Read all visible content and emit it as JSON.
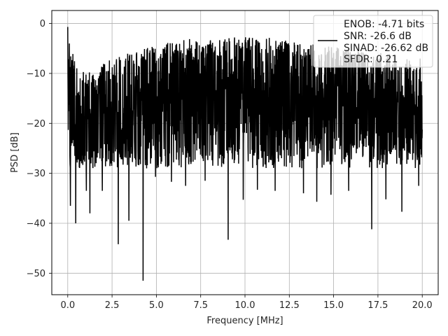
{
  "chart_data": {
    "type": "line",
    "title": "",
    "xlabel": "Frequency [MHz]",
    "ylabel": "PSD [dB]",
    "xlim": [
      -0.9,
      20.9
    ],
    "ylim": [
      -54.3,
      2.6
    ],
    "xticks": [
      0.0,
      2.5,
      5.0,
      7.5,
      10.0,
      12.5,
      15.0,
      17.5,
      20.0
    ],
    "xtick_labels": [
      "0.0",
      "2.5",
      "5.0",
      "7.5",
      "10.0",
      "12.5",
      "15.0",
      "17.5",
      "20.0"
    ],
    "yticks": [
      0,
      -10,
      -20,
      -30,
      -40,
      -50
    ],
    "ytick_labels": [
      "0",
      "−10",
      "−20",
      "−30",
      "−40",
      "−50"
    ],
    "grid": true,
    "legend_position": "top-right",
    "legend_lines": [
      "ENOB: -4.71 bits",
      "SNR: -26.6 dB",
      "SINAD: -26.62 dB",
      "SFDR: 0.21"
    ],
    "series": [
      {
        "color": "#000000",
        "x_range": [
          0.0,
          20.0
        ],
        "upper_envelope": [
          [
            0.0,
            -0.7
          ],
          [
            0.1,
            -4
          ],
          [
            0.3,
            -6
          ],
          [
            0.6,
            -9
          ],
          [
            1.0,
            -10
          ],
          [
            1.5,
            -9
          ],
          [
            2.0,
            -8
          ],
          [
            2.5,
            -7
          ],
          [
            3.0,
            -6
          ],
          [
            3.5,
            -5.5
          ],
          [
            4.0,
            -5
          ],
          [
            5.0,
            -4.5
          ],
          [
            6.0,
            -3.5
          ],
          [
            7.0,
            -3
          ],
          [
            8.0,
            -3
          ],
          [
            9.0,
            -3
          ],
          [
            10.0,
            -2.5
          ],
          [
            11.0,
            -2.8
          ],
          [
            12.0,
            -3
          ],
          [
            13.0,
            -4
          ],
          [
            14.0,
            -4
          ],
          [
            15.0,
            -4.5
          ],
          [
            16.0,
            -5
          ],
          [
            17.0,
            -5.5
          ],
          [
            18.0,
            -6
          ],
          [
            19.0,
            -6.5
          ],
          [
            20.0,
            -7
          ]
        ],
        "typical_floor": -26,
        "deep_dips": [
          [
            0.15,
            -36.5
          ],
          [
            0.45,
            -40
          ],
          [
            1.05,
            -33.5
          ],
          [
            1.25,
            -38
          ],
          [
            1.95,
            -33.5
          ],
          [
            2.85,
            -44.2
          ],
          [
            3.45,
            -39.5
          ],
          [
            4.25,
            -51.5
          ],
          [
            4.95,
            -30.7
          ],
          [
            5.85,
            -31.7
          ],
          [
            6.65,
            -32.5
          ],
          [
            7.75,
            -31.5
          ],
          [
            9.05,
            -43.3
          ],
          [
            9.9,
            -35.3
          ],
          [
            10.7,
            -33.3
          ],
          [
            11.7,
            -33.5
          ],
          [
            13.3,
            -34
          ],
          [
            14.05,
            -35.7
          ],
          [
            14.85,
            -34.3
          ],
          [
            15.85,
            -33.5
          ],
          [
            17.15,
            -41.2
          ],
          [
            17.95,
            -35.2
          ],
          [
            18.85,
            -37.7
          ],
          [
            19.8,
            -32.5
          ]
        ],
        "spread_db": 18,
        "sample_count": 2000
      }
    ]
  }
}
